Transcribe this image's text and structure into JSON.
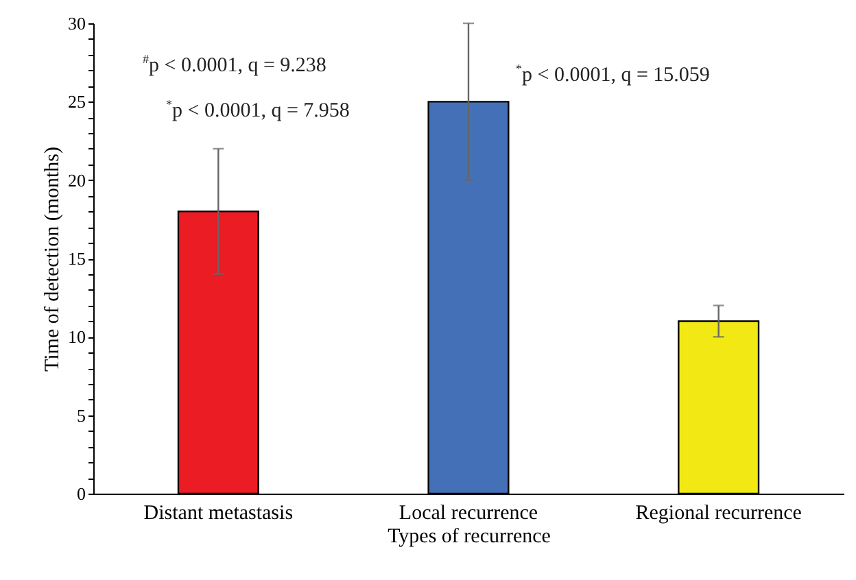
{
  "chart_data": {
    "type": "bar",
    "xlabel": "Types of recurrence",
    "ylabel": "Time of detection (months)",
    "categories": [
      "Distant metastasis",
      "Local recurrence",
      "Regional recurrence"
    ],
    "values": [
      18,
      25,
      11
    ],
    "colors": [
      "#ec1c24",
      "#4470b7",
      "#f2e914"
    ],
    "errors": [
      4,
      5,
      1
    ],
    "ylim": [
      0,
      30
    ],
    "yticks": [
      0,
      {
        "value": 1,
        "label": null
      },
      {
        "value": 2,
        "label": null
      },
      {
        "value": 3,
        "label": null
      },
      {
        "value": 4,
        "label": null
      },
      5,
      {
        "value": 6,
        "label": null
      },
      {
        "value": 7,
        "label": null
      },
      {
        "value": 8,
        "label": null
      },
      {
        "value": 9,
        "label": null
      },
      10,
      {
        "value": 11,
        "label": null
      },
      {
        "value": 12,
        "label": null
      },
      {
        "value": 13,
        "label": null
      },
      {
        "value": 14,
        "label": null
      },
      15,
      {
        "value": 16,
        "label": null
      },
      {
        "value": 17,
        "label": null
      },
      {
        "value": 18,
        "label": null
      },
      {
        "value": 19,
        "label": null
      },
      20,
      {
        "value": 21,
        "label": null
      },
      {
        "value": 22,
        "label": null
      },
      {
        "value": 23,
        "label": null
      },
      {
        "value": 24,
        "label": null
      },
      25,
      {
        "value": 26,
        "label": null
      },
      {
        "value": 27,
        "label": null
      },
      {
        "value": 28,
        "label": null
      },
      {
        "value": 29,
        "label": null
      },
      30
    ],
    "annotations": [
      "$^{#}$p < 0.0001, q = 9.238",
      "$^{*}$p < 0.0001, q = 7.958",
      "$^{*}$p < 0.0001, q = 15.059"
    ],
    "grid": false
  }
}
